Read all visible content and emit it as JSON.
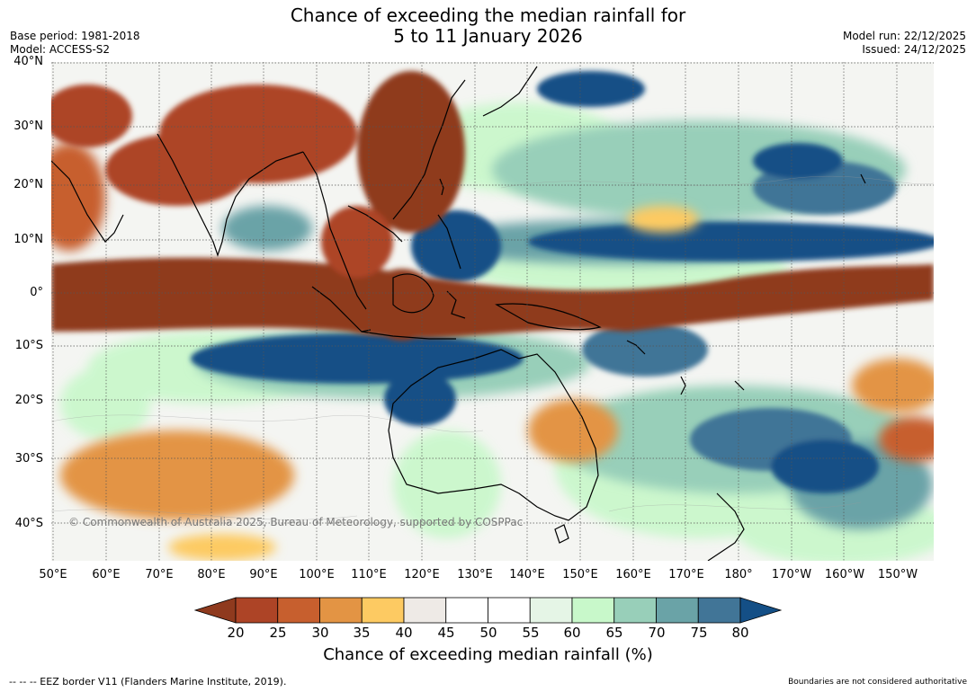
{
  "title": {
    "line1": "Chance of exceeding the median rainfall for",
    "line2": "5 to 11 January 2026"
  },
  "meta": {
    "base_period": "Base period: 1981-2018",
    "model": "Model: ACCESS-S2",
    "model_run": "Model run: 22/12/2025",
    "issued": "Issued: 24/12/2025"
  },
  "latitude_labels": [
    "40°N",
    "30°N",
    "20°N",
    "10°N",
    "0°",
    "10°S",
    "20°S",
    "30°S",
    "40°S"
  ],
  "longitude_labels": [
    "50°E",
    "60°E",
    "70°E",
    "80°E",
    "90°E",
    "100°E",
    "110°E",
    "120°E",
    "130°E",
    "140°E",
    "150°E",
    "160°E",
    "170°E",
    "180°",
    "170°W",
    "160°W",
    "150°W"
  ],
  "copyright": "© Commonwealth of Australia 2025, Bureau of Meteorology, supported by COSPPac",
  "colorbar": {
    "ticks": [
      "20",
      "25",
      "30",
      "35",
      "40",
      "45",
      "50",
      "55",
      "60",
      "65",
      "70",
      "75",
      "80"
    ],
    "colors": [
      "#8f3a1e",
      "#ad4426",
      "#c75f2e",
      "#e39444",
      "#fdca62",
      "#eeeae6",
      "#ffffff",
      "#ffffff",
      "#e5f5e6",
      "#c8f8ca",
      "#98cfb9",
      "#6aa3a7",
      "#417597",
      "#144f86"
    ],
    "label": "Chance of exceeding median rainfall (%)"
  },
  "footer": {
    "eez_note": "--  --  -- EEZ border V11 (Flanders Marine Institute, 2019).",
    "disclaimer": "Boundaries are not considered authoritative"
  }
}
